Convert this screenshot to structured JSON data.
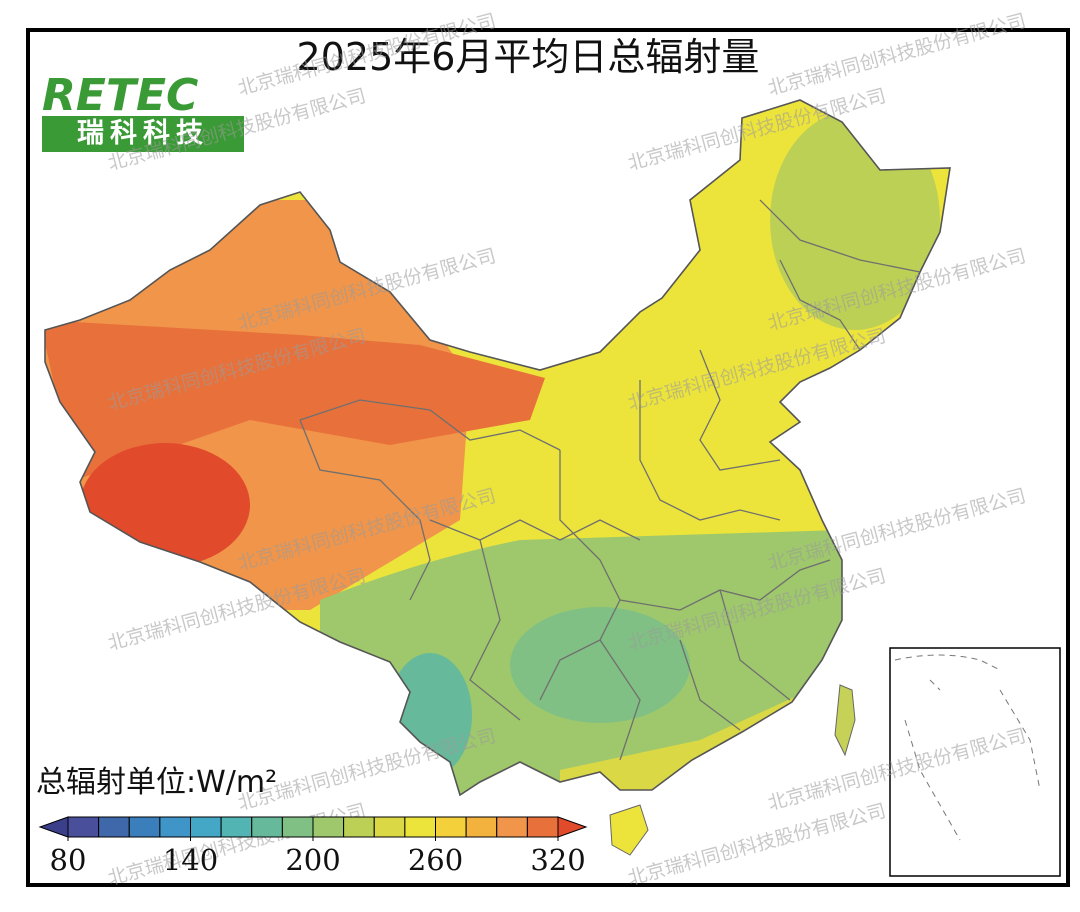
{
  "title": "2025年6月平均日总辐射量",
  "logo": {
    "brand": "RETEC",
    "name": "瑞科科技"
  },
  "watermark": "北京瑞科同创科技股份有限公司",
  "chart_data": {
    "type": "contour-map",
    "colorbar_label": "总辐射单位:W/m²",
    "levels": [
      80,
      95,
      110,
      125,
      140,
      155,
      170,
      185,
      200,
      215,
      230,
      245,
      260,
      275,
      290,
      305,
      320
    ],
    "colors": [
      "#4a4f9b",
      "#3f68ab",
      "#3a7fbb",
      "#3f95c8",
      "#45a7c6",
      "#52b4b3",
      "#66ba9b",
      "#80c084",
      "#9ec86b",
      "#bdd056",
      "#dbd846",
      "#ede43b",
      "#f4d03a",
      "#f3b23d",
      "#f0954a",
      "#e8713b"
    ],
    "under_color": "#3b3f8a",
    "over_color": "#e24a2c",
    "xticks": [
      80,
      140,
      200,
      260,
      320
    ],
    "zones": [
      {
        "value": 250
      },
      {
        "value": 290
      },
      {
        "value": 310
      },
      {
        "value": 322
      },
      {
        "value": 220
      },
      {
        "value": 212
      },
      {
        "value": 185
      },
      {
        "value": 180
      },
      {
        "value": 235
      }
    ]
  }
}
